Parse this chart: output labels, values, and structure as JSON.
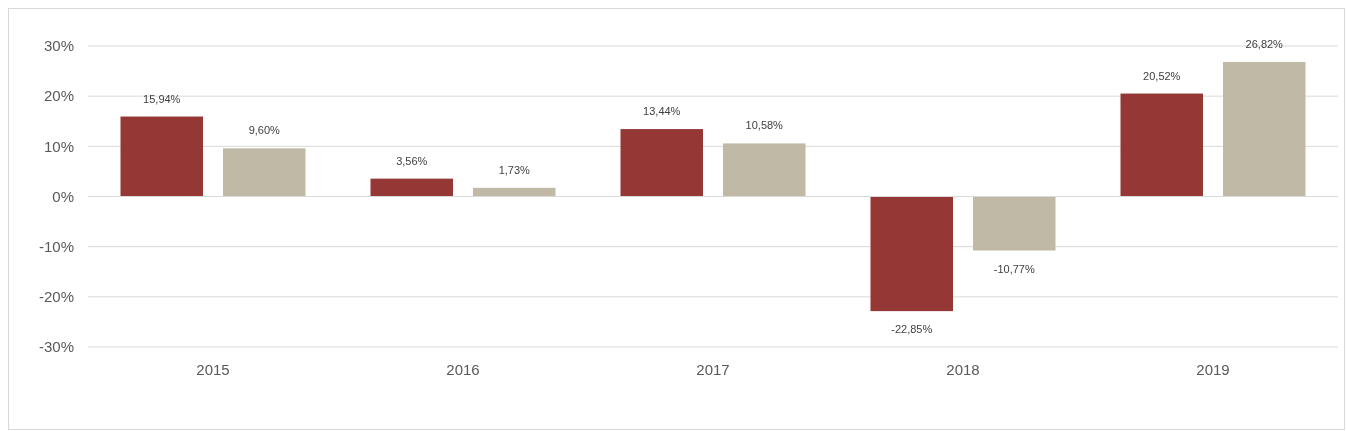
{
  "chart_data": {
    "type": "bar",
    "categories": [
      "2015",
      "2016",
      "2017",
      "2018",
      "2019"
    ],
    "series": [
      {
        "color": "#953735",
        "values": [
          15.94,
          3.56,
          13.44,
          -22.85,
          20.52
        ],
        "value_labels": [
          "15,94%",
          "3,56%",
          "13,44%",
          "-22,85%",
          "20,52%"
        ]
      },
      {
        "color": "#c0b9a6",
        "values": [
          9.6,
          1.73,
          10.58,
          -10.77,
          26.82
        ],
        "value_labels": [
          "9,60%",
          "1,73%",
          "10,58%",
          "-10,77%",
          "26,82%"
        ]
      }
    ],
    "ylim": [
      -30,
      30
    ],
    "yticks": [
      {
        "value": -30,
        "label": "-30%"
      },
      {
        "value": -20,
        "label": "-20%"
      },
      {
        "value": -10,
        "label": "-10%"
      },
      {
        "value": 0,
        "label": "0%"
      },
      {
        "value": 10,
        "label": "10%"
      },
      {
        "value": 20,
        "label": "20%"
      },
      {
        "value": 30,
        "label": "30%"
      }
    ],
    "grid": "y",
    "legend": false
  }
}
